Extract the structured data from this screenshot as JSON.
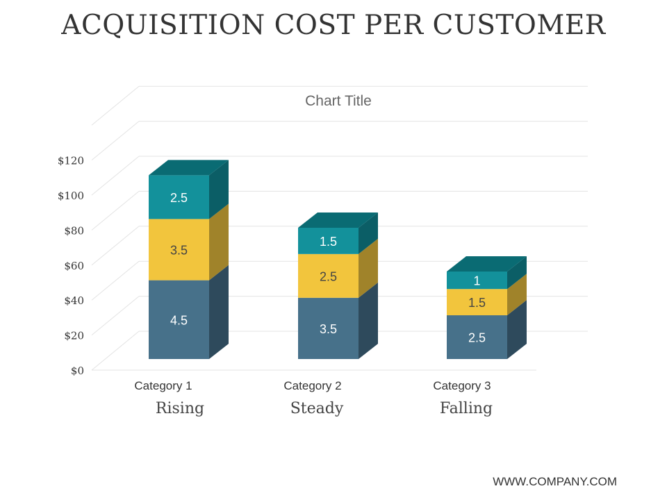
{
  "slide": {
    "title": "ACQUISITION COST PER CUSTOMER",
    "footer": "WWW.COMPANY.COM"
  },
  "colors": {
    "series_front": [
      "#47718a",
      "#f2c53d",
      "#13919b"
    ],
    "series_side": [
      "#2e4a5c",
      "#a0832a",
      "#0b5e66"
    ],
    "series_top": [
      "#355a6e",
      "#c8a22f",
      "#0a6b73"
    ],
    "grid": "#e3e3e3",
    "text": "#444444"
  },
  "chart_data": {
    "type": "bar",
    "stacked": true,
    "three_d": true,
    "title": "Chart Title",
    "categories": [
      "Category 1",
      "Category 2",
      "Category 3"
    ],
    "category_sublabels": [
      "Rising",
      "Steady",
      "Falling"
    ],
    "series": [
      {
        "values": [
          4.5,
          3.5,
          2.5
        ]
      },
      {
        "values": [
          3.5,
          2.5,
          1.5
        ]
      },
      {
        "values": [
          2.5,
          1.5,
          1
        ]
      }
    ],
    "y_tick_labels": [
      "$0",
      "$20",
      "$40",
      "$60",
      "$80",
      "$100",
      "$120"
    ],
    "y_tick_values": [
      0,
      20,
      40,
      60,
      80,
      100,
      120
    ],
    "ylim": [
      0,
      140
    ],
    "grid": true,
    "legend": "none"
  }
}
